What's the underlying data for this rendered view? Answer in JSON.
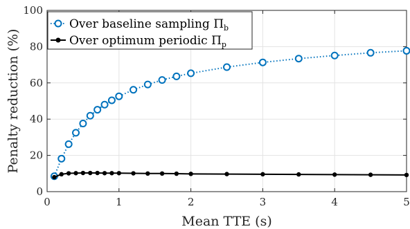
{
  "chart_data": {
    "type": "line",
    "xlabel": "Mean TTE (s)",
    "ylabel": "Penalty reduction (%)",
    "xlim": [
      0,
      5
    ],
    "ylim": [
      0,
      100
    ],
    "xticks": [
      "0",
      "1",
      "2",
      "3",
      "4",
      "5"
    ],
    "yticks": [
      "0",
      "20",
      "40",
      "60",
      "80",
      "100"
    ],
    "grid": true,
    "legend_placement": "top-left",
    "series": [
      {
        "name": "Over baseline sampling Π",
        "name_subscript": "b",
        "color": "#0072BD",
        "line_style": "dotted",
        "marker": "open-circle",
        "x": [
          0.1,
          0.2,
          0.3,
          0.4,
          0.5,
          0.6,
          0.7,
          0.8,
          0.9,
          1.0,
          1.2,
          1.4,
          1.6,
          1.8,
          2.0,
          2.5,
          3.0,
          3.5,
          4.0,
          4.5,
          5.0
        ],
        "y": [
          8.5,
          18.2,
          26.2,
          32.5,
          37.6,
          41.9,
          45.2,
          48.0,
          50.4,
          52.6,
          56.2,
          59.1,
          61.6,
          63.6,
          65.3,
          68.7,
          71.3,
          73.4,
          75.1,
          76.6,
          77.7
        ]
      },
      {
        "name": "Over optimum periodic Π",
        "name_subscript": "p",
        "color": "#000000",
        "line_style": "solid",
        "marker": "filled-circle",
        "x": [
          0.1,
          0.2,
          0.3,
          0.4,
          0.5,
          0.6,
          0.7,
          0.8,
          0.9,
          1.0,
          1.2,
          1.4,
          1.6,
          1.8,
          2.0,
          2.5,
          3.0,
          3.5,
          4.0,
          4.5,
          5.0
        ],
        "y": [
          8.0,
          9.6,
          10.1,
          10.2,
          10.3,
          10.3,
          10.3,
          10.2,
          10.2,
          10.2,
          10.1,
          10.0,
          10.0,
          9.9,
          9.8,
          9.7,
          9.6,
          9.5,
          9.4,
          9.3,
          9.2
        ]
      }
    ]
  }
}
